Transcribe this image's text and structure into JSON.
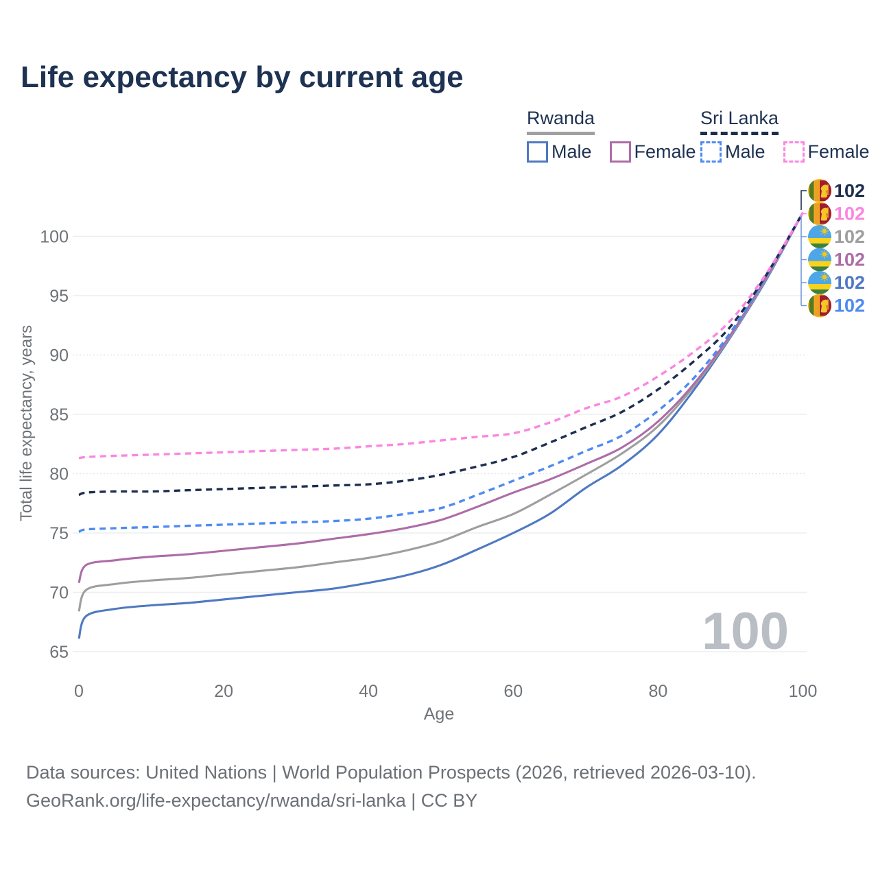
{
  "title": "Life expectancy by current age",
  "legend": {
    "groups": [
      {
        "label": "Rwanda",
        "underline_color": "#a0a0a0",
        "underline_style": "solid",
        "items": [
          {
            "label": "Male",
            "color": "#4f79c2",
            "style": "solid"
          },
          {
            "label": "Female",
            "color": "#ad6ca8",
            "style": "solid"
          }
        ]
      },
      {
        "label": "Sri Lanka",
        "underline_color": "#1d2e4e",
        "underline_style": "dashed",
        "items": [
          {
            "label": "Male",
            "color": "#4d8bf2",
            "style": "dashed"
          },
          {
            "label": "Female",
            "color": "#fb86e1",
            "style": "dashed"
          }
        ]
      }
    ]
  },
  "chart_data": {
    "type": "line",
    "title": "Life expectancy by current age",
    "xlabel": "Age",
    "ylabel": "Total life expectancy, years",
    "xlim": [
      0,
      100
    ],
    "ylim": [
      65,
      102.5
    ],
    "x_ticks": [
      0,
      20,
      40,
      60,
      80,
      100
    ],
    "y_ticks": [
      65,
      70,
      75,
      80,
      85,
      90,
      95,
      100
    ],
    "dotted_gridlines": [
      80,
      90
    ],
    "grid": "horizontal",
    "legend_position": "top-right",
    "watermark": "100",
    "x": [
      0,
      1,
      5,
      10,
      15,
      20,
      25,
      30,
      35,
      40,
      45,
      50,
      55,
      60,
      65,
      70,
      75,
      80,
      85,
      90,
      95,
      100
    ],
    "series": [
      {
        "name": "Rwanda Male",
        "country": "Rwanda",
        "sex": "Male",
        "color": "#4f79c2",
        "dash": false,
        "values": [
          66.1,
          68.0,
          68.6,
          68.9,
          69.1,
          69.4,
          69.7,
          70.0,
          70.3,
          70.8,
          71.4,
          72.3,
          73.6,
          75.0,
          76.6,
          78.8,
          80.7,
          83.3,
          87.1,
          91.5,
          96.4,
          102
        ]
      },
      {
        "name": "Rwanda Overall",
        "country": "Rwanda",
        "sex": "Both",
        "color": "#9e9e9e",
        "dash": false,
        "values": [
          68.4,
          70.2,
          70.7,
          71.0,
          71.2,
          71.5,
          71.8,
          72.1,
          72.5,
          72.9,
          73.5,
          74.3,
          75.5,
          76.6,
          78.2,
          79.9,
          81.7,
          84.0,
          87.4,
          91.6,
          96.5,
          102
        ]
      },
      {
        "name": "Rwanda Female",
        "country": "Rwanda",
        "sex": "Female",
        "color": "#ad6ca8",
        "dash": false,
        "values": [
          70.8,
          72.3,
          72.7,
          73.0,
          73.2,
          73.5,
          73.8,
          74.1,
          74.5,
          74.9,
          75.4,
          76.1,
          77.2,
          78.4,
          79.5,
          80.8,
          82.2,
          84.4,
          87.6,
          91.7,
          96.6,
          102
        ]
      },
      {
        "name": "Sri Lanka Male",
        "country": "Sri Lanka",
        "sex": "Male",
        "color": "#4d8bf2",
        "dash": true,
        "values": [
          75.1,
          75.3,
          75.4,
          75.5,
          75.6,
          75.7,
          75.8,
          75.9,
          76.0,
          76.2,
          76.6,
          77.1,
          78.2,
          79.4,
          80.6,
          81.9,
          83.2,
          85.3,
          88.1,
          91.9,
          96.7,
          102
        ]
      },
      {
        "name": "Sri Lanka Overall",
        "country": "Sri Lanka",
        "sex": "Both",
        "color": "#1d2e4e",
        "dash": true,
        "values": [
          78.2,
          78.4,
          78.5,
          78.5,
          78.6,
          78.7,
          78.8,
          78.9,
          79.0,
          79.1,
          79.4,
          79.9,
          80.6,
          81.4,
          82.6,
          83.9,
          85.2,
          87.1,
          89.5,
          92.4,
          96.8,
          102
        ]
      },
      {
        "name": "Sri Lanka Female",
        "country": "Sri Lanka",
        "sex": "Female",
        "color": "#fb86e1",
        "dash": true,
        "values": [
          81.3,
          81.4,
          81.5,
          81.6,
          81.7,
          81.8,
          81.9,
          82.0,
          82.1,
          82.3,
          82.5,
          82.8,
          83.1,
          83.4,
          84.3,
          85.5,
          86.5,
          88.2,
          90.3,
          92.9,
          96.9,
          102
        ]
      }
    ],
    "end_labels": [
      {
        "flag": "sri-lanka",
        "text": "102",
        "color": "#1d2e4e",
        "series": "Sri Lanka Overall"
      },
      {
        "flag": "sri-lanka",
        "text": "102",
        "color": "#fb86e1",
        "series": "Sri Lanka Female"
      },
      {
        "flag": "rwanda",
        "text": "102",
        "color": "#9e9e9e",
        "series": "Rwanda Overall"
      },
      {
        "flag": "rwanda",
        "text": "102",
        "color": "#ad6ca8",
        "series": "Rwanda Female"
      },
      {
        "flag": "rwanda",
        "text": "102",
        "color": "#4f79c2",
        "series": "Rwanda Male"
      },
      {
        "flag": "sri-lanka",
        "text": "102",
        "color": "#4d8bf2",
        "series": "Sri Lanka Male"
      }
    ]
  },
  "footer": {
    "line1": "Data sources: United Nations | World Population Prospects (2026, retrieved 2026-03-10).",
    "line2": "GeoRank.org/life-expectancy/rwanda/sri-lanka | CC BY"
  }
}
